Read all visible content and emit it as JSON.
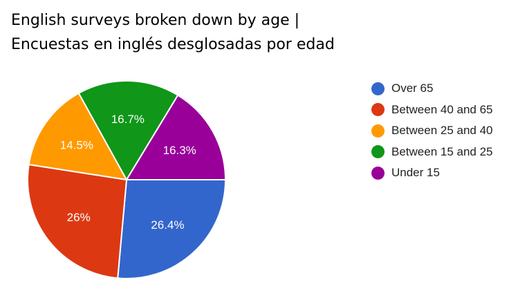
{
  "chart_data": {
    "type": "pie",
    "title_line1": "English surveys broken down by age |",
    "title_line2": "Encuestas en inglés desglosadas por edad",
    "slices": [
      {
        "label": "Over 65",
        "value": 26.4,
        "display": "26.4%",
        "color": "#3366cc"
      },
      {
        "label": "Between 40 and 65",
        "value": 26.0,
        "display": "26%",
        "color": "#dc3912"
      },
      {
        "label": "Between 25 and 40",
        "value": 14.5,
        "display": "14.5%",
        "color": "#ff9900"
      },
      {
        "label": "Between 15 and 25",
        "value": 16.7,
        "display": "16.7%",
        "color": "#109618"
      },
      {
        "label": "Under 15",
        "value": 16.3,
        "display": "16.3%",
        "color": "#990099"
      }
    ],
    "legend_position": "right"
  }
}
